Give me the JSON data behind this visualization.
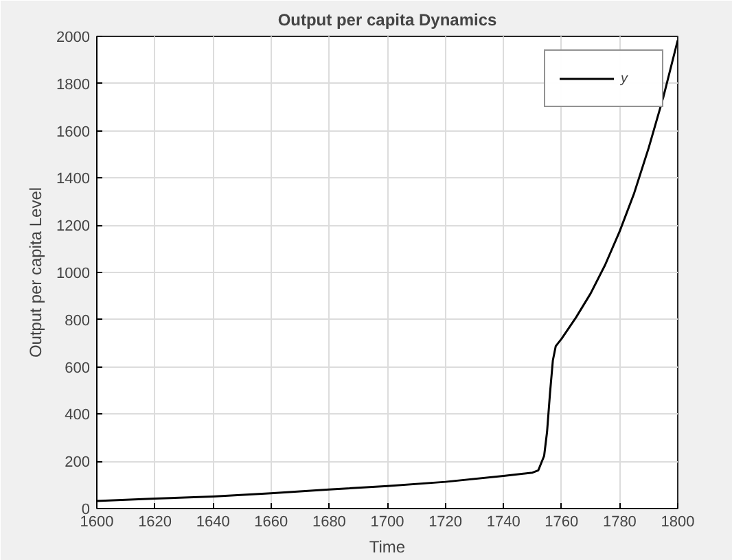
{
  "chart_data": {
    "type": "line",
    "title": "Output per capita Dynamics",
    "xlabel": "Time",
    "ylabel": "Output per capita Level",
    "x": [
      1600,
      1620,
      1640,
      1660,
      1680,
      1700,
      1720,
      1740,
      1750,
      1752,
      1754,
      1755,
      1756,
      1757,
      1758,
      1760,
      1765,
      1770,
      1775,
      1780,
      1785,
      1790,
      1795,
      1800
    ],
    "series": [
      {
        "name": "y",
        "color": "#000000",
        "values": [
          32,
          42,
          51,
          65,
          81,
          95,
          113,
          138,
          152,
          162,
          223,
          324,
          486,
          627,
          688,
          719,
          810,
          911,
          1032,
          1174,
          1336,
          1528,
          1741,
          1984
        ]
      }
    ],
    "xlim": [
      1600,
      1800
    ],
    "xticks": [
      1600,
      1620,
      1640,
      1660,
      1680,
      1700,
      1720,
      1740,
      1760,
      1780,
      1800
    ],
    "ylim": [
      0,
      2000
    ],
    "yticks": [
      0,
      200,
      400,
      600,
      800,
      1000,
      1200,
      1400,
      1600,
      1800,
      2000
    ],
    "grid": true,
    "legend": "top right"
  }
}
